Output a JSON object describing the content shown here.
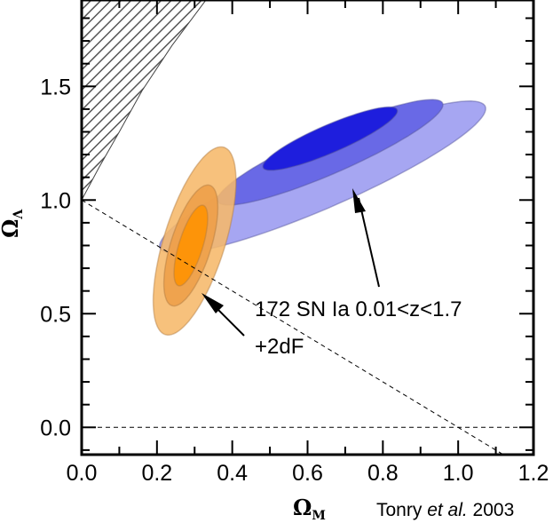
{
  "chart_data": {
    "type": "contour",
    "xlabel_main": "Ω",
    "xlabel_sub": "M",
    "ylabel_main": "Ω",
    "ylabel_sub": "Λ",
    "xlim": [
      0.0,
      1.2
    ],
    "ylim": [
      -0.12,
      1.88
    ],
    "x_ticks": [
      0.0,
      0.2,
      0.4,
      0.6,
      0.8,
      1.0,
      1.2
    ],
    "x_tick_labels": [
      "0.0",
      "0.2",
      "0.4",
      "0.6",
      "0.8",
      "1.0",
      "1.2"
    ],
    "y_ticks": [
      0.0,
      0.5,
      1.0,
      1.5
    ],
    "y_tick_labels": [
      "0.0",
      "0.5",
      "1.0",
      "1.5"
    ],
    "flat_universe_line": {
      "points": [
        [
          0.0,
          1.0
        ],
        [
          1.2,
          -0.2
        ]
      ],
      "style": "dashed"
    },
    "zero_line": {
      "y": 0.0,
      "style": "dashed"
    },
    "excluded_region": {
      "description_points": [
        [
          0.0,
          1.88
        ],
        [
          0.0,
          1.0
        ],
        [
          0.045,
          1.14
        ],
        [
          0.1,
          1.3
        ],
        [
          0.16,
          1.48
        ],
        [
          0.24,
          1.68
        ],
        [
          0.33,
          1.88
        ]
      ],
      "fill": "hatched"
    },
    "series": [
      {
        "name": "172 SN Ia 0.01<z<1.7",
        "color": "#3333ee",
        "contours": [
          {
            "level": 3,
            "cx": 0.64,
            "cy": 1.1,
            "major": 1.07,
            "minor": 0.236,
            "angle_deg": 37,
            "color": "#a6a6f2"
          },
          {
            "level": 2,
            "cx": 0.66,
            "cy": 1.21,
            "major": 0.74,
            "minor": 0.163,
            "angle_deg": 37,
            "color": "#6969e6"
          },
          {
            "level": 1,
            "cx": 0.66,
            "cy": 1.27,
            "major": 0.44,
            "minor": 0.108,
            "angle_deg": 37,
            "color": "#1e1edd"
          }
        ]
      },
      {
        "name": "+2dF",
        "color": "#ff9900",
        "contours": [
          {
            "level": 3,
            "cx": 0.3,
            "cy": 0.82,
            "major": 0.84,
            "minor": 0.167,
            "angle_deg": 80,
            "color": "#f6b86a"
          },
          {
            "level": 2,
            "cx": 0.29,
            "cy": 0.8,
            "major": 0.54,
            "minor": 0.11,
            "angle_deg": 80,
            "color": "#ee9e48"
          },
          {
            "level": 1,
            "cx": 0.29,
            "cy": 0.8,
            "major": 0.36,
            "minor": 0.065,
            "angle_deg": 80,
            "color": "#ff9200"
          }
        ]
      }
    ],
    "annotations": [
      {
        "text": "172 SN Ia 0.01<z<1.7",
        "arrow_to": [
          0.8,
          1.05
        ]
      },
      {
        "text": "+2dF",
        "arrow_to": [
          0.34,
          0.62
        ]
      }
    ]
  },
  "credit": {
    "author": "Tonry ",
    "etal": "et al.",
    "year": " 2003"
  }
}
